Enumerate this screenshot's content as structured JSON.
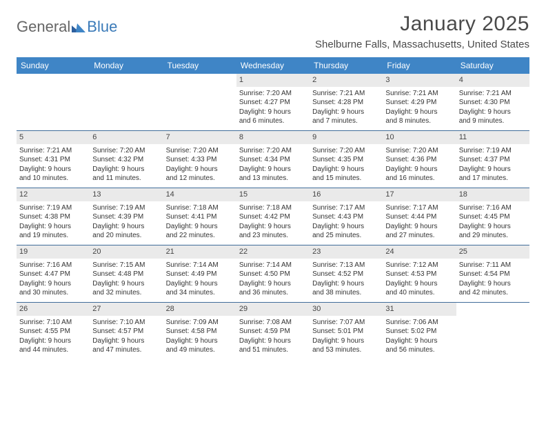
{
  "logo": {
    "general": "General",
    "blue": "Blue"
  },
  "title": "January 2025",
  "location": "Shelburne Falls, Massachusetts, United States",
  "colors": {
    "header_bg": "#3f85c6",
    "header_text": "#ffffff",
    "week_border": "#3f6c99",
    "daynum_bg": "#eaeaea",
    "text": "#333333",
    "logo_gray": "#666666",
    "logo_blue": "#3a7ab8"
  },
  "dayNames": [
    "Sunday",
    "Monday",
    "Tuesday",
    "Wednesday",
    "Thursday",
    "Friday",
    "Saturday"
  ],
  "weeks": [
    [
      null,
      null,
      null,
      {
        "n": "1",
        "sr": "7:20 AM",
        "ss": "4:27 PM",
        "d1": "Daylight: 9 hours",
        "d2": "and 6 minutes."
      },
      {
        "n": "2",
        "sr": "7:21 AM",
        "ss": "4:28 PM",
        "d1": "Daylight: 9 hours",
        "d2": "and 7 minutes."
      },
      {
        "n": "3",
        "sr": "7:21 AM",
        "ss": "4:29 PM",
        "d1": "Daylight: 9 hours",
        "d2": "and 8 minutes."
      },
      {
        "n": "4",
        "sr": "7:21 AM",
        "ss": "4:30 PM",
        "d1": "Daylight: 9 hours",
        "d2": "and 9 minutes."
      }
    ],
    [
      {
        "n": "5",
        "sr": "7:21 AM",
        "ss": "4:31 PM",
        "d1": "Daylight: 9 hours",
        "d2": "and 10 minutes."
      },
      {
        "n": "6",
        "sr": "7:20 AM",
        "ss": "4:32 PM",
        "d1": "Daylight: 9 hours",
        "d2": "and 11 minutes."
      },
      {
        "n": "7",
        "sr": "7:20 AM",
        "ss": "4:33 PM",
        "d1": "Daylight: 9 hours",
        "d2": "and 12 minutes."
      },
      {
        "n": "8",
        "sr": "7:20 AM",
        "ss": "4:34 PM",
        "d1": "Daylight: 9 hours",
        "d2": "and 13 minutes."
      },
      {
        "n": "9",
        "sr": "7:20 AM",
        "ss": "4:35 PM",
        "d1": "Daylight: 9 hours",
        "d2": "and 15 minutes."
      },
      {
        "n": "10",
        "sr": "7:20 AM",
        "ss": "4:36 PM",
        "d1": "Daylight: 9 hours",
        "d2": "and 16 minutes."
      },
      {
        "n": "11",
        "sr": "7:19 AM",
        "ss": "4:37 PM",
        "d1": "Daylight: 9 hours",
        "d2": "and 17 minutes."
      }
    ],
    [
      {
        "n": "12",
        "sr": "7:19 AM",
        "ss": "4:38 PM",
        "d1": "Daylight: 9 hours",
        "d2": "and 19 minutes."
      },
      {
        "n": "13",
        "sr": "7:19 AM",
        "ss": "4:39 PM",
        "d1": "Daylight: 9 hours",
        "d2": "and 20 minutes."
      },
      {
        "n": "14",
        "sr": "7:18 AM",
        "ss": "4:41 PM",
        "d1": "Daylight: 9 hours",
        "d2": "and 22 minutes."
      },
      {
        "n": "15",
        "sr": "7:18 AM",
        "ss": "4:42 PM",
        "d1": "Daylight: 9 hours",
        "d2": "and 23 minutes."
      },
      {
        "n": "16",
        "sr": "7:17 AM",
        "ss": "4:43 PM",
        "d1": "Daylight: 9 hours",
        "d2": "and 25 minutes."
      },
      {
        "n": "17",
        "sr": "7:17 AM",
        "ss": "4:44 PM",
        "d1": "Daylight: 9 hours",
        "d2": "and 27 minutes."
      },
      {
        "n": "18",
        "sr": "7:16 AM",
        "ss": "4:45 PM",
        "d1": "Daylight: 9 hours",
        "d2": "and 29 minutes."
      }
    ],
    [
      {
        "n": "19",
        "sr": "7:16 AM",
        "ss": "4:47 PM",
        "d1": "Daylight: 9 hours",
        "d2": "and 30 minutes."
      },
      {
        "n": "20",
        "sr": "7:15 AM",
        "ss": "4:48 PM",
        "d1": "Daylight: 9 hours",
        "d2": "and 32 minutes."
      },
      {
        "n": "21",
        "sr": "7:14 AM",
        "ss": "4:49 PM",
        "d1": "Daylight: 9 hours",
        "d2": "and 34 minutes."
      },
      {
        "n": "22",
        "sr": "7:14 AM",
        "ss": "4:50 PM",
        "d1": "Daylight: 9 hours",
        "d2": "and 36 minutes."
      },
      {
        "n": "23",
        "sr": "7:13 AM",
        "ss": "4:52 PM",
        "d1": "Daylight: 9 hours",
        "d2": "and 38 minutes."
      },
      {
        "n": "24",
        "sr": "7:12 AM",
        "ss": "4:53 PM",
        "d1": "Daylight: 9 hours",
        "d2": "and 40 minutes."
      },
      {
        "n": "25",
        "sr": "7:11 AM",
        "ss": "4:54 PM",
        "d1": "Daylight: 9 hours",
        "d2": "and 42 minutes."
      }
    ],
    [
      {
        "n": "26",
        "sr": "7:10 AM",
        "ss": "4:55 PM",
        "d1": "Daylight: 9 hours",
        "d2": "and 44 minutes."
      },
      {
        "n": "27",
        "sr": "7:10 AM",
        "ss": "4:57 PM",
        "d1": "Daylight: 9 hours",
        "d2": "and 47 minutes."
      },
      {
        "n": "28",
        "sr": "7:09 AM",
        "ss": "4:58 PM",
        "d1": "Daylight: 9 hours",
        "d2": "and 49 minutes."
      },
      {
        "n": "29",
        "sr": "7:08 AM",
        "ss": "4:59 PM",
        "d1": "Daylight: 9 hours",
        "d2": "and 51 minutes."
      },
      {
        "n": "30",
        "sr": "7:07 AM",
        "ss": "5:01 PM",
        "d1": "Daylight: 9 hours",
        "d2": "and 53 minutes."
      },
      {
        "n": "31",
        "sr": "7:06 AM",
        "ss": "5:02 PM",
        "d1": "Daylight: 9 hours",
        "d2": "and 56 minutes."
      },
      null
    ]
  ]
}
